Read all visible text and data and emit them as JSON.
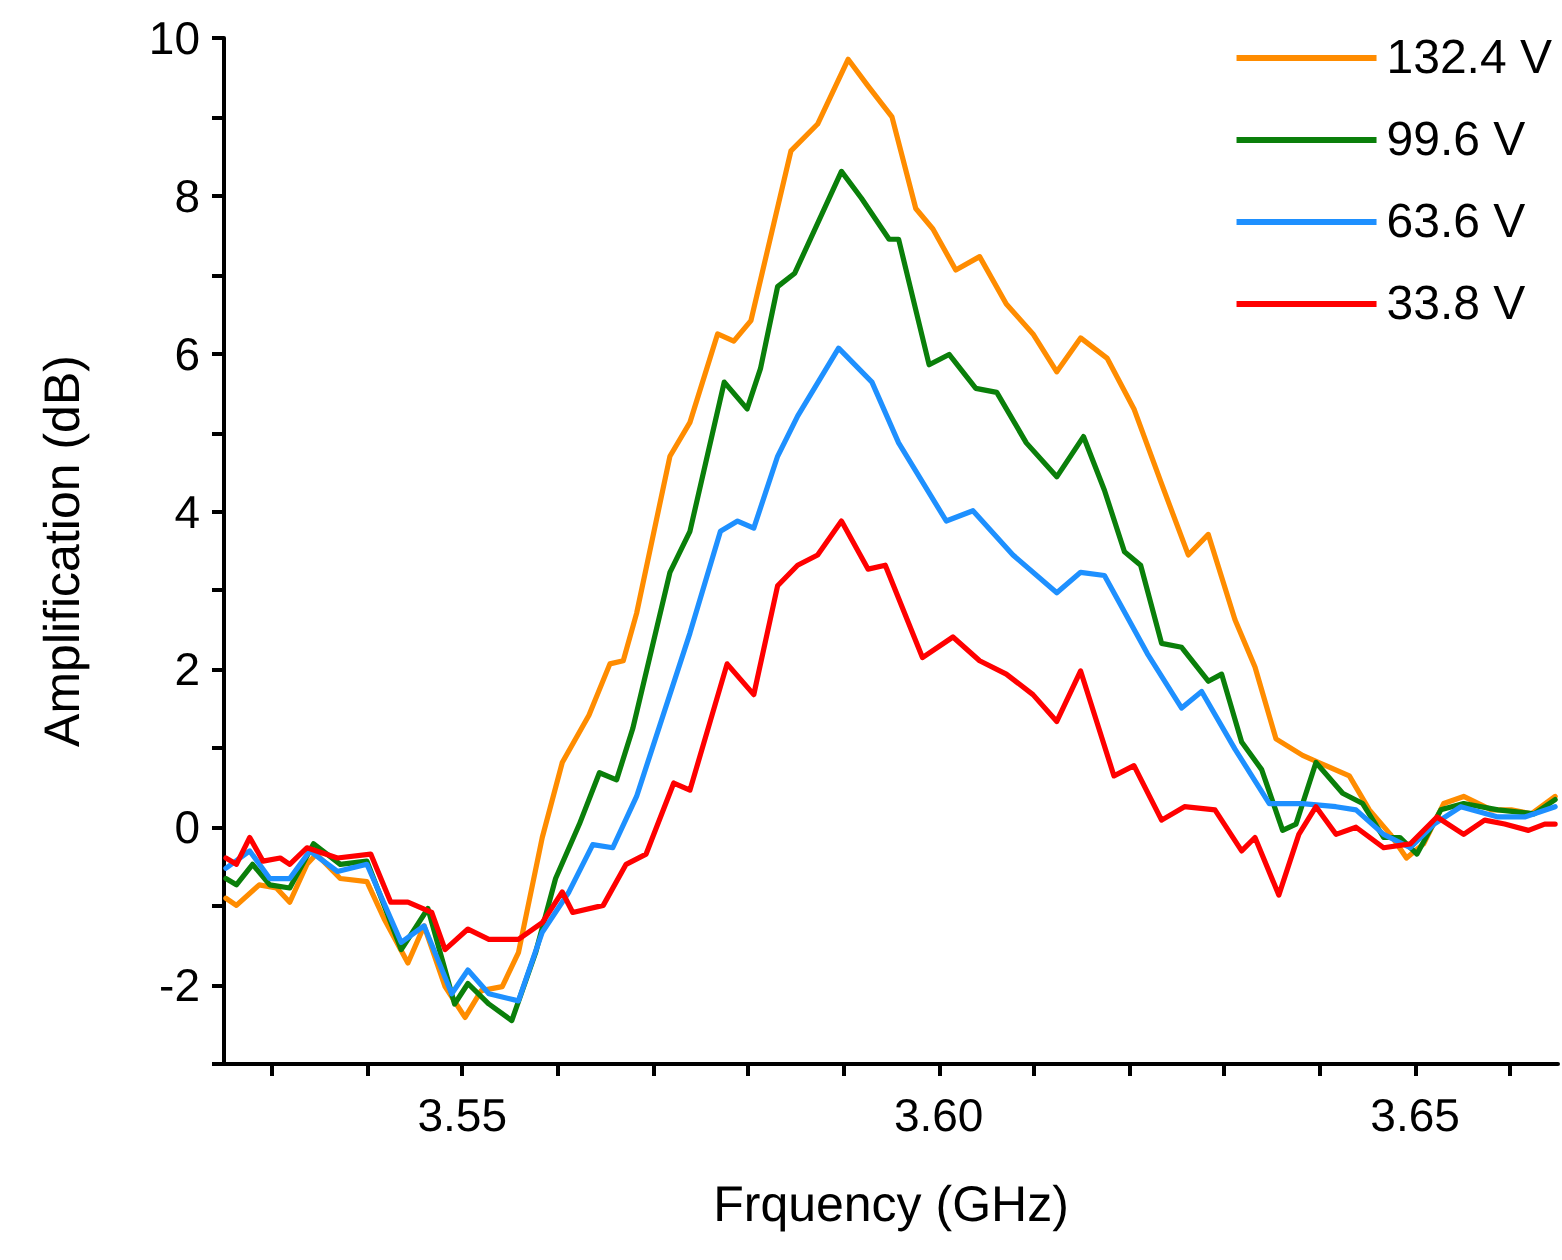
{
  "chart_data": {
    "type": "line",
    "xlabel": "Frquency (GHz)",
    "ylabel": "Amplification (dB)",
    "xlim": [
      3.525,
      3.665
    ],
    "ylim": [
      -3,
      10
    ],
    "xticks": [
      {
        "value": 3.53,
        "label": null
      },
      {
        "value": 3.54,
        "label": null
      },
      {
        "value": 3.55,
        "label": "3.55"
      },
      {
        "value": 3.56,
        "label": null
      },
      {
        "value": 3.57,
        "label": null
      },
      {
        "value": 3.58,
        "label": null
      },
      {
        "value": 3.59,
        "label": null
      },
      {
        "value": 3.6,
        "label": "3.60"
      },
      {
        "value": 3.61,
        "label": null
      },
      {
        "value": 3.62,
        "label": null
      },
      {
        "value": 3.63,
        "label": null
      },
      {
        "value": 3.64,
        "label": null
      },
      {
        "value": 3.65,
        "label": "3.65"
      },
      {
        "value": 3.66,
        "label": null
      }
    ],
    "yticks": [
      {
        "value": -3,
        "label": null
      },
      -2,
      {
        "value": -1,
        "label": null
      },
      0,
      {
        "value": 1,
        "label": null
      },
      2,
      {
        "value": 3,
        "label": null
      },
      4,
      {
        "value": 5,
        "label": null
      },
      6,
      {
        "value": 7,
        "label": null
      },
      8,
      {
        "value": 9,
        "label": null
      },
      10
    ],
    "grid": false,
    "legend": "top right",
    "marker": "none",
    "line_style": "solid",
    "series": [
      {
        "name": "132.4 V",
        "color": "#ff8c00",
        "x": [
          3.5252,
          3.5263,
          3.5287,
          3.5305,
          3.5319,
          3.5337,
          3.5347,
          3.5372,
          3.54,
          3.5418,
          3.5443,
          3.546,
          3.5482,
          3.5503,
          3.552,
          3.5542,
          3.5559,
          3.5584,
          3.5605,
          3.5633,
          3.5655,
          3.5669,
          3.5683,
          3.5718,
          3.5739,
          3.5768,
          3.5785,
          3.5803,
          3.5845,
          3.5873,
          3.5905,
          3.5926,
          3.5951,
          3.5976,
          3.5994,
          3.6018,
          3.6043,
          3.6071,
          3.6099,
          3.6124,
          3.6149,
          3.6177,
          3.6205,
          3.6234,
          3.6262,
          3.6283,
          3.6311,
          3.6332,
          3.6354,
          3.6382,
          3.6399,
          3.6431,
          3.6452,
          3.6474,
          3.6491,
          3.6509,
          3.653,
          3.6551,
          3.658,
          3.6601,
          3.6622,
          3.6647
        ],
        "values": [
          -0.9,
          -0.99,
          -0.73,
          -0.77,
          -0.95,
          -0.47,
          -0.34,
          -0.65,
          -0.69,
          -1.16,
          -1.72,
          -1.25,
          -2.02,
          -2.41,
          -2.07,
          -2.02,
          -1.59,
          -0.13,
          0.82,
          1.42,
          2.07,
          2.11,
          2.71,
          4.7,
          5.13,
          6.25,
          6.16,
          6.42,
          8.57,
          8.91,
          9.73,
          9.39,
          9.0,
          7.84,
          7.58,
          7.06,
          7.23,
          6.63,
          6.25,
          5.77,
          6.2,
          5.94,
          5.3,
          4.35,
          3.45,
          3.71,
          2.63,
          2.03,
          1.12,
          0.91,
          0.82,
          0.65,
          0.22,
          -0.09,
          -0.39,
          -0.21,
          0.3,
          0.39,
          0.22,
          0.22,
          0.17,
          0.39
        ]
      },
      {
        "name": "99.6 V",
        "color": "#0a7f0a",
        "x": [
          3.5252,
          3.5263,
          3.528,
          3.5298,
          3.5319,
          3.5344,
          3.5372,
          3.54,
          3.5418,
          3.5436,
          3.5464,
          3.5492,
          3.5506,
          3.5528,
          3.5552,
          3.5577,
          3.5598,
          3.5623,
          3.5644,
          3.5662,
          3.5679,
          3.5718,
          3.5739,
          3.5775,
          3.5799,
          3.5813,
          3.5831,
          3.5849,
          3.5898,
          3.5919,
          3.5948,
          3.5958,
          3.599,
          3.6011,
          3.6039,
          3.6061,
          3.6092,
          3.6124,
          3.6152,
          3.6174,
          3.6195,
          3.6212,
          3.6234,
          3.6255,
          3.6283,
          3.6297,
          3.6318,
          3.6339,
          3.6361,
          3.6375,
          3.6396,
          3.6424,
          3.6445,
          3.6467,
          3.6484,
          3.6502,
          3.6527,
          3.6551,
          3.6587,
          3.6625,
          3.6647
        ],
        "values": [
          -0.65,
          -0.73,
          -0.47,
          -0.73,
          -0.77,
          -0.21,
          -0.47,
          -0.43,
          -0.99,
          -1.55,
          -1.03,
          -2.24,
          -1.98,
          -2.24,
          -2.45,
          -1.59,
          -0.65,
          0.04,
          0.69,
          0.6,
          1.25,
          3.23,
          3.75,
          5.64,
          5.3,
          5.81,
          6.85,
          7.02,
          8.31,
          7.97,
          7.45,
          7.45,
          5.86,
          5.99,
          5.56,
          5.51,
          4.87,
          4.44,
          4.95,
          4.27,
          3.49,
          3.32,
          2.33,
          2.28,
          1.85,
          1.94,
          1.08,
          0.73,
          -0.04,
          0.04,
          0.82,
          0.43,
          0.3,
          -0.13,
          -0.13,
          -0.34,
          0.22,
          0.3,
          0.22,
          0.17,
          0.35
        ]
      },
      {
        "name": "63.6 V",
        "color": "#1e90ff",
        "x": [
          3.5252,
          3.5277,
          3.5298,
          3.5319,
          3.534,
          3.5369,
          3.54,
          3.5436,
          3.546,
          3.5489,
          3.5506,
          3.5528,
          3.5559,
          3.5584,
          3.5612,
          3.5637,
          3.5658,
          3.5683,
          3.5739,
          3.5771,
          3.5789,
          3.5806,
          3.5831,
          3.5852,
          3.5895,
          3.593,
          3.5958,
          3.6008,
          3.6036,
          3.6078,
          3.6124,
          3.6149,
          3.6174,
          3.6219,
          3.6255,
          3.6276,
          3.6311,
          3.6347,
          3.6382,
          3.6417,
          3.6438,
          3.6467,
          3.6495,
          3.652,
          3.6548,
          3.6587,
          3.6615,
          3.6647
        ],
        "values": [
          -0.52,
          -0.3,
          -0.65,
          -0.65,
          -0.3,
          -0.56,
          -0.47,
          -1.46,
          -1.25,
          -2.11,
          -1.81,
          -2.11,
          -2.2,
          -1.33,
          -0.82,
          -0.22,
          -0.26,
          0.39,
          2.46,
          3.75,
          3.88,
          3.79,
          4.7,
          5.21,
          6.07,
          5.64,
          4.87,
          3.88,
          4.01,
          3.45,
          2.97,
          3.23,
          3.19,
          2.2,
          1.51,
          1.72,
          0.99,
          0.3,
          0.3,
          0.26,
          0.22,
          -0.09,
          -0.26,
          0.04,
          0.26,
          0.13,
          0.13,
          0.26
        ]
      },
      {
        "name": "33.8 V",
        "color": "#ff0000",
        "x": [
          3.5252,
          3.5263,
          3.5277,
          3.5291,
          3.5309,
          3.5319,
          3.5337,
          3.5369,
          3.5404,
          3.5425,
          3.5443,
          3.5468,
          3.5482,
          3.5506,
          3.5528,
          3.5559,
          3.5584,
          3.5605,
          3.5616,
          3.5648,
          3.5672,
          3.5693,
          3.5722,
          3.5739,
          3.5778,
          3.5806,
          3.5831,
          3.5852,
          3.5873,
          3.5898,
          3.5926,
          3.5944,
          3.5983,
          3.6015,
          3.6043,
          3.6071,
          3.6099,
          3.6124,
          3.6149,
          3.6184,
          3.6205,
          3.6234,
          3.6258,
          3.629,
          3.6318,
          3.6332,
          3.6357,
          3.6378,
          3.6396,
          3.6417,
          3.6438,
          3.6467,
          3.6495,
          3.6523,
          3.6551,
          3.6573,
          3.6594,
          3.6619,
          3.6636,
          3.6647
        ],
        "values": [
          -0.39,
          -0.47,
          -0.13,
          -0.43,
          -0.39,
          -0.47,
          -0.26,
          -0.39,
          -0.34,
          -0.95,
          -0.95,
          -1.08,
          -1.55,
          -1.29,
          -1.42,
          -1.42,
          -1.21,
          -0.82,
          -1.08,
          -0.99,
          -0.47,
          -0.34,
          0.56,
          0.47,
          2.07,
          1.68,
          3.06,
          3.32,
          3.45,
          3.88,
          3.27,
          3.32,
          2.15,
          2.41,
          2.11,
          1.94,
          1.68,
          1.34,
          1.98,
          0.65,
          0.78,
          0.09,
          0.26,
          0.22,
          -0.3,
          -0.13,
          -0.86,
          -0.09,
          0.26,
          -0.09,
          0.0,
          -0.26,
          -0.21,
          0.13,
          -0.09,
          0.09,
          0.04,
          -0.04,
          0.04,
          0.04
        ]
      }
    ]
  }
}
